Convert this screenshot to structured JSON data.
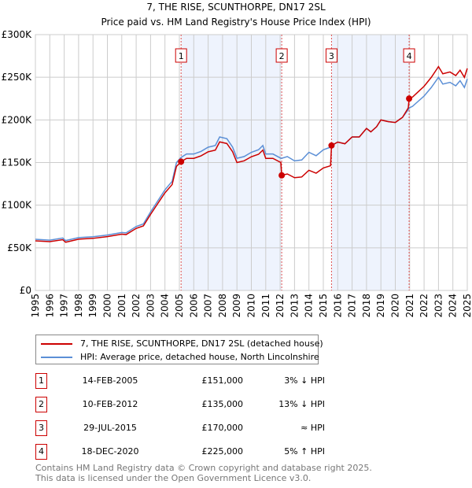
{
  "chart_data": {
    "type": "line",
    "title": "7, THE RISE, SCUNTHORPE, DN17 2SL",
    "subtitle": "Price paid vs. HM Land Registry's House Price Index (HPI)",
    "xlim": [
      1995,
      2025
    ],
    "ylim": [
      0,
      300000
    ],
    "y_ticks": [
      {
        "v": 0,
        "label": "£0"
      },
      {
        "v": 50000,
        "label": "£50K"
      },
      {
        "v": 100000,
        "label": "£100K"
      },
      {
        "v": 150000,
        "label": "£150K"
      },
      {
        "v": 200000,
        "label": "£200K"
      },
      {
        "v": 250000,
        "label": "£250K"
      },
      {
        "v": 300000,
        "label": "£300K"
      }
    ],
    "x_ticks": [
      "1995",
      "1996",
      "1997",
      "1998",
      "1999",
      "2000",
      "2001",
      "2002",
      "2003",
      "2004",
      "2005",
      "2006",
      "2007",
      "2008",
      "2009",
      "2010",
      "2011",
      "2012",
      "2013",
      "2014",
      "2015",
      "2016",
      "2017",
      "2018",
      "2019",
      "2020",
      "2021",
      "2022",
      "2023",
      "2024",
      "2025"
    ],
    "grid": true,
    "colors": {
      "price": "#cc0000",
      "hpi": "#5b8fd6",
      "shade": "#eef3fd"
    },
    "series": [
      {
        "name": "7, THE RISE, SCUNTHORPE, DN17 2SL (detached house)",
        "points": [
          [
            1995,
            58200
          ],
          [
            1996,
            57200
          ],
          [
            1996.9,
            59500
          ],
          [
            1997.1,
            56500
          ],
          [
            1998,
            60100
          ],
          [
            1999,
            61100
          ],
          [
            2000,
            63100
          ],
          [
            2001,
            66000
          ],
          [
            2001.3,
            65500
          ],
          [
            2002,
            72800
          ],
          [
            2002.5,
            75700
          ],
          [
            2003,
            89200
          ],
          [
            2003.5,
            101900
          ],
          [
            2004,
            114500
          ],
          [
            2004.5,
            124200
          ],
          [
            2004.8,
            145500
          ],
          [
            2005.12,
            151000
          ],
          [
            2005.5,
            154900
          ],
          [
            2006,
            154900
          ],
          [
            2006.5,
            157800
          ],
          [
            2007,
            162600
          ],
          [
            2007.5,
            164600
          ],
          [
            2007.8,
            174200
          ],
          [
            2008.3,
            172300
          ],
          [
            2008.7,
            162600
          ],
          [
            2009,
            150000
          ],
          [
            2009.5,
            152000
          ],
          [
            2010,
            156800
          ],
          [
            2010.5,
            159700
          ],
          [
            2010.8,
            164600
          ],
          [
            2011,
            154900
          ],
          [
            2011.5,
            154900
          ],
          [
            2012.05,
            150000
          ],
          [
            2012.11,
            135000
          ],
          [
            2012.5,
            136600
          ],
          [
            2013,
            132200
          ],
          [
            2013.5,
            133100
          ],
          [
            2014,
            140900
          ],
          [
            2014.5,
            137500
          ],
          [
            2015,
            143600
          ],
          [
            2015.5,
            146200
          ],
          [
            2015.57,
            170000
          ],
          [
            2016,
            174000
          ],
          [
            2016.5,
            172000
          ],
          [
            2017,
            180000
          ],
          [
            2017.5,
            180000
          ],
          [
            2018,
            190000
          ],
          [
            2018.3,
            186000
          ],
          [
            2018.7,
            192000
          ],
          [
            2019,
            200000
          ],
          [
            2019.5,
            198000
          ],
          [
            2020,
            197000
          ],
          [
            2020.5,
            203000
          ],
          [
            2020.9,
            214000
          ],
          [
            2020.96,
            225000
          ],
          [
            2021.2,
            226800
          ],
          [
            2021.6,
            233100
          ],
          [
            2022,
            239400
          ],
          [
            2022.5,
            249900
          ],
          [
            2023,
            262500
          ],
          [
            2023.3,
            254100
          ],
          [
            2023.8,
            256200
          ],
          [
            2024.2,
            252000
          ],
          [
            2024.5,
            258300
          ],
          [
            2024.8,
            249900
          ],
          [
            2025,
            260400
          ]
        ]
      },
      {
        "name": "HPI: Average price, detached house, North Lincolnshire",
        "points": [
          [
            1995,
            60000
          ],
          [
            1996,
            59000
          ],
          [
            1996.9,
            61500
          ],
          [
            1997.1,
            58500
          ],
          [
            1998,
            62000
          ],
          [
            1999,
            63000
          ],
          [
            2000,
            65000
          ],
          [
            2001,
            68000
          ],
          [
            2001.3,
            67500
          ],
          [
            2002,
            75000
          ],
          [
            2002.5,
            78000
          ],
          [
            2003,
            92000
          ],
          [
            2003.5,
            105000
          ],
          [
            2004,
            118000
          ],
          [
            2004.5,
            128000
          ],
          [
            2004.8,
            150000
          ],
          [
            2005.12,
            156000
          ],
          [
            2005.5,
            160000
          ],
          [
            2006,
            160000
          ],
          [
            2006.5,
            163000
          ],
          [
            2007,
            168000
          ],
          [
            2007.5,
            170000
          ],
          [
            2007.8,
            180000
          ],
          [
            2008.3,
            178000
          ],
          [
            2008.7,
            168000
          ],
          [
            2009,
            155000
          ],
          [
            2009.5,
            157000
          ],
          [
            2010,
            162000
          ],
          [
            2010.5,
            165000
          ],
          [
            2010.8,
            170000
          ],
          [
            2011,
            160000
          ],
          [
            2011.5,
            160000
          ],
          [
            2012.05,
            155000
          ],
          [
            2012.11,
            155000
          ],
          [
            2012.5,
            157000
          ],
          [
            2013,
            152000
          ],
          [
            2013.5,
            153000
          ],
          [
            2014,
            162000
          ],
          [
            2014.5,
            158000
          ],
          [
            2015,
            165000
          ],
          [
            2015.5,
            168000
          ],
          [
            2015.57,
            170000
          ],
          [
            2016,
            174000
          ],
          [
            2016.5,
            172000
          ],
          [
            2017,
            180000
          ],
          [
            2017.5,
            180000
          ],
          [
            2018,
            190000
          ],
          [
            2018.3,
            186000
          ],
          [
            2018.7,
            192000
          ],
          [
            2019,
            200000
          ],
          [
            2019.5,
            198000
          ],
          [
            2020,
            197000
          ],
          [
            2020.5,
            203000
          ],
          [
            2020.9,
            212000
          ],
          [
            2020.96,
            214000
          ],
          [
            2021.2,
            216000
          ],
          [
            2021.6,
            222000
          ],
          [
            2022,
            228000
          ],
          [
            2022.5,
            238000
          ],
          [
            2023,
            250000
          ],
          [
            2023.3,
            242000
          ],
          [
            2023.8,
            244000
          ],
          [
            2024.2,
            240000
          ],
          [
            2024.5,
            246000
          ],
          [
            2024.8,
            238000
          ],
          [
            2025,
            248000
          ]
        ]
      }
    ],
    "sales": [
      {
        "n": "1",
        "x": 2005.12,
        "price": 151000,
        "date": "14-FEB-2005",
        "price_label": "£151,000",
        "hpi": "3% ↓ HPI"
      },
      {
        "n": "2",
        "x": 2012.11,
        "price": 135000,
        "date": "10-FEB-2012",
        "price_label": "£135,000",
        "hpi": "13% ↓ HPI"
      },
      {
        "n": "3",
        "x": 2015.57,
        "price": 170000,
        "date": "29-JUL-2015",
        "price_label": "£170,000",
        "hpi": "≈ HPI"
      },
      {
        "n": "4",
        "x": 2020.96,
        "price": 225000,
        "date": "18-DEC-2020",
        "price_label": "£225,000",
        "hpi": "5% ↑ HPI"
      }
    ],
    "shaded_ranges": [
      [
        2005.12,
        2012.11
      ],
      [
        2015.57,
        2020.96
      ]
    ]
  },
  "legend": {
    "price": "7, THE RISE, SCUNTHORPE, DN17 2SL (detached house)",
    "hpi": "HPI: Average price, detached house, North Lincolnshire"
  },
  "footer": {
    "line1": "Contains HM Land Registry data © Crown copyright and database right 2025.",
    "line2": "This data is licensed under the Open Government Licence v3.0."
  }
}
